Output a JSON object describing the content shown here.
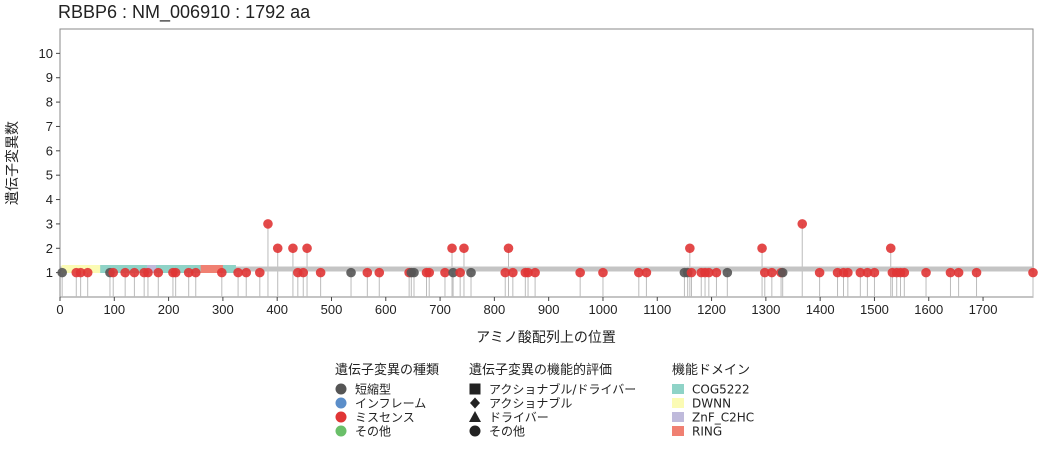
{
  "chart_data": {
    "type": "scatter",
    "subtype": "lollipop",
    "title": "RBBP6 : NM_006910 : 1792 aa",
    "xlabel": "アミノ酸配列上の位置",
    "ylabel": "遺伝子変異数",
    "xlim": [
      0,
      1792
    ],
    "ylim": [
      0,
      11
    ],
    "x_ticks": [
      0,
      100,
      200,
      300,
      400,
      500,
      600,
      700,
      800,
      900,
      1000,
      1100,
      1200,
      1300,
      1400,
      1500,
      1600,
      1700
    ],
    "y_ticks": [
      1,
      2,
      3,
      4,
      5,
      6,
      7,
      8,
      9,
      10
    ],
    "grid": false,
    "protein_length": 1792,
    "colors": {
      "短縮型": "#555555",
      "インフレーム": "#5b8ec9",
      "ミスセンス": "#e03535",
      "その他": "#6abf69",
      "COG5222": "#8fd3c7",
      "DWNN": "#fbfbb4",
      "ZnF_C2HC": "#bfbadb",
      "RING": "#f08072",
      "backbone": "#c4c4c4",
      "stem": "#bbbbbb"
    },
    "domains": [
      {
        "name": "DWNN",
        "start": 3,
        "end": 79
      },
      {
        "name": "COG5222",
        "start": 74,
        "end": 324
      },
      {
        "name": "ZnF_C2HC",
        "start": 160,
        "end": 177
      },
      {
        "name": "RING",
        "start": 259,
        "end": 300
      }
    ],
    "mutations": [
      {
        "pos": 4,
        "count": 1,
        "type": "短縮型"
      },
      {
        "pos": 30,
        "count": 1,
        "type": "ミスセンス"
      },
      {
        "pos": 38,
        "count": 1,
        "type": "ミスセンス"
      },
      {
        "pos": 51,
        "count": 1,
        "type": "ミスセンス"
      },
      {
        "pos": 92,
        "count": 1,
        "type": "短縮型"
      },
      {
        "pos": 98,
        "count": 1,
        "type": "ミスセンス"
      },
      {
        "pos": 120,
        "count": 1,
        "type": "ミスセンス"
      },
      {
        "pos": 137,
        "count": 1,
        "type": "ミスセンス"
      },
      {
        "pos": 155,
        "count": 1,
        "type": "ミスセンス"
      },
      {
        "pos": 162,
        "count": 1,
        "type": "ミスセンス"
      },
      {
        "pos": 181,
        "count": 1,
        "type": "ミスセンス"
      },
      {
        "pos": 208,
        "count": 1,
        "type": "ミスセンス"
      },
      {
        "pos": 213,
        "count": 1,
        "type": "ミスセンス"
      },
      {
        "pos": 237,
        "count": 1,
        "type": "ミスセンス"
      },
      {
        "pos": 250,
        "count": 1,
        "type": "ミスセンス"
      },
      {
        "pos": 298,
        "count": 1,
        "type": "ミスセンス"
      },
      {
        "pos": 328,
        "count": 1,
        "type": "ミスセンス"
      },
      {
        "pos": 343,
        "count": 1,
        "type": "ミスセンス"
      },
      {
        "pos": 368,
        "count": 1,
        "type": "ミスセンス"
      },
      {
        "pos": 383,
        "count": 3,
        "type": "ミスセンス"
      },
      {
        "pos": 401,
        "count": 2,
        "type": "ミスセンス"
      },
      {
        "pos": 429,
        "count": 2,
        "type": "ミスセンス"
      },
      {
        "pos": 438,
        "count": 1,
        "type": "ミスセンス"
      },
      {
        "pos": 448,
        "count": 1,
        "type": "ミスセンス"
      },
      {
        "pos": 455,
        "count": 2,
        "type": "ミスセンス"
      },
      {
        "pos": 480,
        "count": 1,
        "type": "ミスセンス"
      },
      {
        "pos": 536,
        "count": 1,
        "type": "短縮型"
      },
      {
        "pos": 566,
        "count": 1,
        "type": "ミスセンス"
      },
      {
        "pos": 588,
        "count": 1,
        "type": "ミスセンス"
      },
      {
        "pos": 643,
        "count": 1,
        "type": "ミスセンス"
      },
      {
        "pos": 647,
        "count": 1,
        "type": "短縮型"
      },
      {
        "pos": 652,
        "count": 1,
        "type": "短縮型"
      },
      {
        "pos": 675,
        "count": 1,
        "type": "ミスセンス"
      },
      {
        "pos": 680,
        "count": 1,
        "type": "ミスセンス"
      },
      {
        "pos": 709,
        "count": 1,
        "type": "ミスセンス"
      },
      {
        "pos": 722,
        "count": 2,
        "type": "ミスセンス"
      },
      {
        "pos": 724,
        "count": 1,
        "type": "短縮型"
      },
      {
        "pos": 737,
        "count": 1,
        "type": "ミスセンス"
      },
      {
        "pos": 744,
        "count": 2,
        "type": "ミスセンス"
      },
      {
        "pos": 757,
        "count": 1,
        "type": "短縮型"
      },
      {
        "pos": 820,
        "count": 1,
        "type": "ミスセンス"
      },
      {
        "pos": 826,
        "count": 2,
        "type": "ミスセンス"
      },
      {
        "pos": 834,
        "count": 1,
        "type": "ミスセンス"
      },
      {
        "pos": 857,
        "count": 1,
        "type": "ミスセンス"
      },
      {
        "pos": 862,
        "count": 1,
        "type": "ミスセンス"
      },
      {
        "pos": 875,
        "count": 1,
        "type": "ミスセンス"
      },
      {
        "pos": 958,
        "count": 1,
        "type": "ミスセンス"
      },
      {
        "pos": 1000,
        "count": 1,
        "type": "ミスセンス"
      },
      {
        "pos": 1066,
        "count": 1,
        "type": "ミスセンス"
      },
      {
        "pos": 1080,
        "count": 1,
        "type": "ミスセンス"
      },
      {
        "pos": 1150,
        "count": 1,
        "type": "短縮型"
      },
      {
        "pos": 1156,
        "count": 1,
        "type": "短縮型"
      },
      {
        "pos": 1160,
        "count": 2,
        "type": "ミスセンス"
      },
      {
        "pos": 1163,
        "count": 1,
        "type": "ミスセンス"
      },
      {
        "pos": 1181,
        "count": 1,
        "type": "ミスセンス"
      },
      {
        "pos": 1188,
        "count": 1,
        "type": "ミスセンス"
      },
      {
        "pos": 1195,
        "count": 1,
        "type": "ミスセンス"
      },
      {
        "pos": 1209,
        "count": 1,
        "type": "ミスセンス"
      },
      {
        "pos": 1229,
        "count": 1,
        "type": "短縮型"
      },
      {
        "pos": 1293,
        "count": 2,
        "type": "ミスセンス"
      },
      {
        "pos": 1298,
        "count": 1,
        "type": "ミスセンス"
      },
      {
        "pos": 1311,
        "count": 1,
        "type": "ミスセンス"
      },
      {
        "pos": 1328,
        "count": 1,
        "type": "ミスセンス"
      },
      {
        "pos": 1331,
        "count": 1,
        "type": "短縮型"
      },
      {
        "pos": 1367,
        "count": 3,
        "type": "ミスセンス"
      },
      {
        "pos": 1399,
        "count": 1,
        "type": "ミスセンス"
      },
      {
        "pos": 1432,
        "count": 1,
        "type": "ミスセンス"
      },
      {
        "pos": 1443,
        "count": 1,
        "type": "ミスセンス"
      },
      {
        "pos": 1451,
        "count": 1,
        "type": "ミスセンス"
      },
      {
        "pos": 1474,
        "count": 1,
        "type": "ミスセンス"
      },
      {
        "pos": 1487,
        "count": 1,
        "type": "ミスセンス"
      },
      {
        "pos": 1500,
        "count": 1,
        "type": "ミスセンス"
      },
      {
        "pos": 1530,
        "count": 2,
        "type": "ミスセンス"
      },
      {
        "pos": 1533,
        "count": 1,
        "type": "ミスセンス"
      },
      {
        "pos": 1541,
        "count": 1,
        "type": "ミスセンス"
      },
      {
        "pos": 1548,
        "count": 1,
        "type": "ミスセンス"
      },
      {
        "pos": 1555,
        "count": 1,
        "type": "ミスセンス"
      },
      {
        "pos": 1595,
        "count": 1,
        "type": "ミスセンス"
      },
      {
        "pos": 1640,
        "count": 1,
        "type": "ミスセンス"
      },
      {
        "pos": 1655,
        "count": 1,
        "type": "ミスセンス"
      },
      {
        "pos": 1688,
        "count": 1,
        "type": "ミスセンス"
      },
      {
        "pos": 1792,
        "count": 1,
        "type": "ミスセンス"
      }
    ],
    "legends": [
      {
        "title": "遺伝子変異の種類",
        "items": [
          {
            "label": "短縮型",
            "shape": "circle",
            "color": "#555555"
          },
          {
            "label": "インフレーム",
            "shape": "circle",
            "color": "#5b8ec9"
          },
          {
            "label": "ミスセンス",
            "shape": "circle",
            "color": "#e03535"
          },
          {
            "label": "その他",
            "shape": "circle",
            "color": "#6abf69"
          }
        ]
      },
      {
        "title": "遺伝子変異の機能的評価",
        "items": [
          {
            "label": "アクショナブル/ドライバー",
            "shape": "square",
            "color": "#222222"
          },
          {
            "label": "アクショナブル",
            "shape": "diamond",
            "color": "#222222"
          },
          {
            "label": "ドライバー",
            "shape": "triangle",
            "color": "#222222"
          },
          {
            "label": "その他",
            "shape": "circle",
            "color": "#222222"
          }
        ]
      },
      {
        "title": "機能ドメイン",
        "items": [
          {
            "label": "COG5222",
            "shape": "rect",
            "color": "#8fd3c7"
          },
          {
            "label": "DWNN",
            "shape": "rect",
            "color": "#fbfbb4"
          },
          {
            "label": "ZnF_C2HC",
            "shape": "rect",
            "color": "#bfbadb"
          },
          {
            "label": "RING",
            "shape": "rect",
            "color": "#f08072"
          }
        ]
      }
    ],
    "legend_position": "bottom"
  }
}
